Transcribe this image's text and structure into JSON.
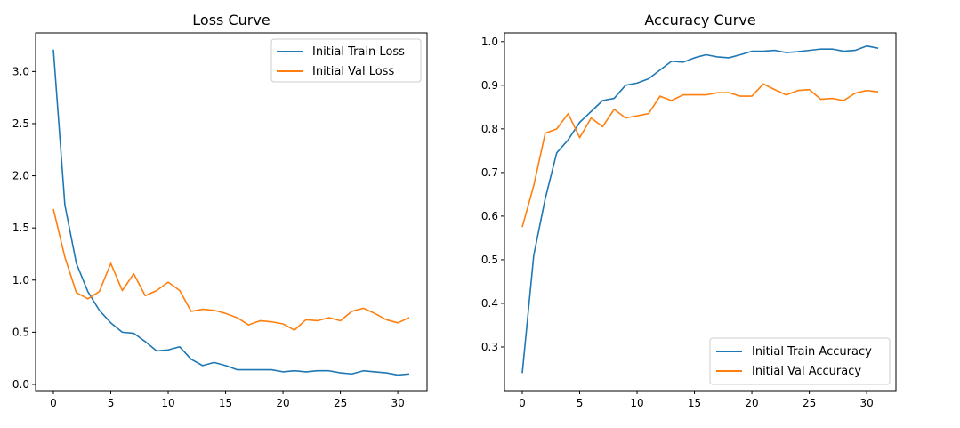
{
  "colors": {
    "train": "#1f77b4",
    "val": "#ff7f0e"
  },
  "chart_data": [
    {
      "type": "line",
      "title": "Loss Curve",
      "xlabel": "",
      "ylabel": "",
      "xlim": [
        -1.55,
        32.55
      ],
      "ylim": [
        -0.06,
        3.37
      ],
      "xticks": [
        0,
        5,
        10,
        15,
        20,
        25,
        30
      ],
      "yticks": [
        0.0,
        0.5,
        1.0,
        1.5,
        2.0,
        2.5,
        3.0
      ],
      "xtick_labels": [
        "0",
        "5",
        "10",
        "15",
        "20",
        "25",
        "30"
      ],
      "ytick_labels": [
        "0.0",
        "0.5",
        "1.0",
        "1.5",
        "2.0",
        "2.5",
        "3.0"
      ],
      "grid": false,
      "legend_loc": "top-right",
      "x": [
        0,
        1,
        2,
        3,
        4,
        5,
        6,
        7,
        8,
        9,
        10,
        11,
        12,
        13,
        14,
        15,
        16,
        17,
        18,
        19,
        20,
        21,
        22,
        23,
        24,
        25,
        26,
        27,
        28,
        29,
        30,
        31
      ],
      "series": [
        {
          "name": "Initial Train Loss",
          "color_key": "train",
          "values": [
            3.21,
            1.72,
            1.16,
            0.89,
            0.71,
            0.59,
            0.5,
            0.49,
            0.41,
            0.32,
            0.33,
            0.36,
            0.24,
            0.18,
            0.21,
            0.18,
            0.14,
            0.14,
            0.14,
            0.14,
            0.12,
            0.13,
            0.12,
            0.13,
            0.13,
            0.11,
            0.1,
            0.13,
            0.12,
            0.11,
            0.09,
            0.1
          ]
        },
        {
          "name": "Initial Val Loss",
          "color_key": "val",
          "values": [
            1.68,
            1.22,
            0.88,
            0.82,
            0.89,
            1.16,
            0.9,
            1.06,
            0.85,
            0.9,
            0.98,
            0.9,
            0.7,
            0.72,
            0.71,
            0.68,
            0.64,
            0.57,
            0.61,
            0.6,
            0.58,
            0.52,
            0.62,
            0.61,
            0.64,
            0.61,
            0.7,
            0.73,
            0.68,
            0.62,
            0.59,
            0.64
          ]
        }
      ]
    },
    {
      "type": "line",
      "title": "Accuracy Curve",
      "xlabel": "",
      "ylabel": "",
      "xlim": [
        -1.55,
        32.55
      ],
      "ylim": [
        0.2,
        1.02
      ],
      "xticks": [
        0,
        5,
        10,
        15,
        20,
        25,
        30
      ],
      "yticks": [
        0.3,
        0.4,
        0.5,
        0.6,
        0.7,
        0.8,
        0.9,
        1.0
      ],
      "xtick_labels": [
        "0",
        "5",
        "10",
        "15",
        "20",
        "25",
        "30"
      ],
      "ytick_labels": [
        "0.3",
        "0.4",
        "0.5",
        "0.6",
        "0.7",
        "0.8",
        "0.9",
        "1.0"
      ],
      "grid": false,
      "legend_loc": "bottom-right",
      "x": [
        0,
        1,
        2,
        3,
        4,
        5,
        6,
        7,
        8,
        9,
        10,
        11,
        12,
        13,
        14,
        15,
        16,
        17,
        18,
        19,
        20,
        21,
        22,
        23,
        24,
        25,
        26,
        27,
        28,
        29,
        30,
        31
      ],
      "series": [
        {
          "name": "Initial Train Accuracy",
          "color_key": "train",
          "values": [
            0.24,
            0.51,
            0.64,
            0.745,
            0.775,
            0.815,
            0.84,
            0.865,
            0.87,
            0.9,
            0.905,
            0.915,
            0.935,
            0.955,
            0.953,
            0.963,
            0.97,
            0.965,
            0.963,
            0.97,
            0.978,
            0.978,
            0.98,
            0.975,
            0.977,
            0.98,
            0.983,
            0.983,
            0.978,
            0.98,
            0.99,
            0.985
          ]
        },
        {
          "name": "Initial Val Accuracy",
          "color_key": "val",
          "values": [
            0.575,
            0.67,
            0.79,
            0.8,
            0.835,
            0.78,
            0.825,
            0.805,
            0.845,
            0.825,
            0.83,
            0.835,
            0.875,
            0.865,
            0.878,
            0.878,
            0.878,
            0.883,
            0.883,
            0.875,
            0.875,
            0.903,
            0.89,
            0.878,
            0.888,
            0.89,
            0.868,
            0.87,
            0.865,
            0.882,
            0.888,
            0.885
          ]
        }
      ]
    }
  ]
}
